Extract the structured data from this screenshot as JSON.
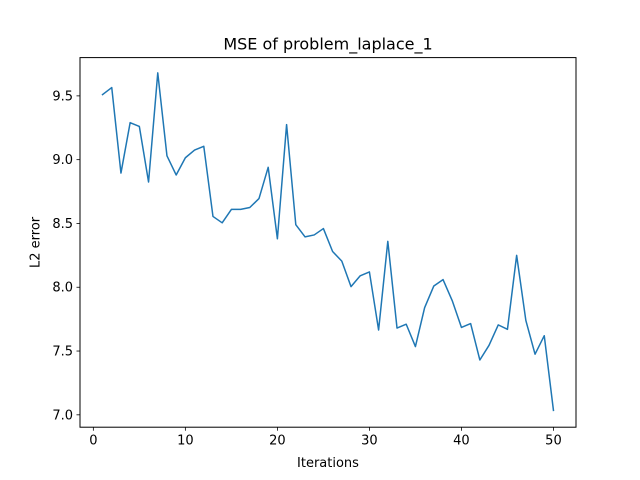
{
  "chart_data": {
    "type": "line",
    "title": "MSE of problem_laplace_1",
    "xlabel": "Iterations",
    "ylabel": "L2 error",
    "xlim": [
      -1.45,
      52.45
    ],
    "ylim": [
      6.903,
      9.8
    ],
    "x_ticks": [
      0,
      10,
      20,
      30,
      40,
      50
    ],
    "y_ticks": [
      7.0,
      7.5,
      8.0,
      8.5,
      9.0,
      9.5
    ],
    "x_tick_labels": [
      "0",
      "10",
      "20",
      "30",
      "40",
      "50"
    ],
    "y_tick_labels": [
      "7.0",
      "7.5",
      "8.0",
      "8.5",
      "9.0",
      "9.5"
    ],
    "grid": false,
    "line_color": "#1f77b4",
    "series": [
      {
        "x": [
          1,
          2,
          3,
          4,
          5,
          6,
          7,
          8,
          9,
          10,
          11,
          12,
          13,
          14,
          15,
          16,
          17,
          18,
          19,
          20,
          21,
          22,
          23,
          24,
          25,
          26,
          27,
          28,
          29,
          30,
          31,
          32,
          33,
          34,
          35,
          36,
          37,
          38,
          39,
          40,
          41,
          42,
          43,
          44,
          45,
          46,
          47,
          48,
          49,
          50
        ],
        "values": [
          9.51,
          9.565,
          8.895,
          9.29,
          9.26,
          8.825,
          9.68,
          9.03,
          8.88,
          9.015,
          9.075,
          9.105,
          8.555,
          8.505,
          8.61,
          8.61,
          8.625,
          8.695,
          8.94,
          8.38,
          9.275,
          8.49,
          8.395,
          8.41,
          8.46,
          8.28,
          8.205,
          8.005,
          8.09,
          8.12,
          7.665,
          8.36,
          7.68,
          7.71,
          7.535,
          7.84,
          8.01,
          8.06,
          7.895,
          7.685,
          7.715,
          7.43,
          7.545,
          7.705,
          7.67,
          8.25,
          7.74,
          7.475,
          7.62,
          7.035
        ]
      }
    ]
  }
}
